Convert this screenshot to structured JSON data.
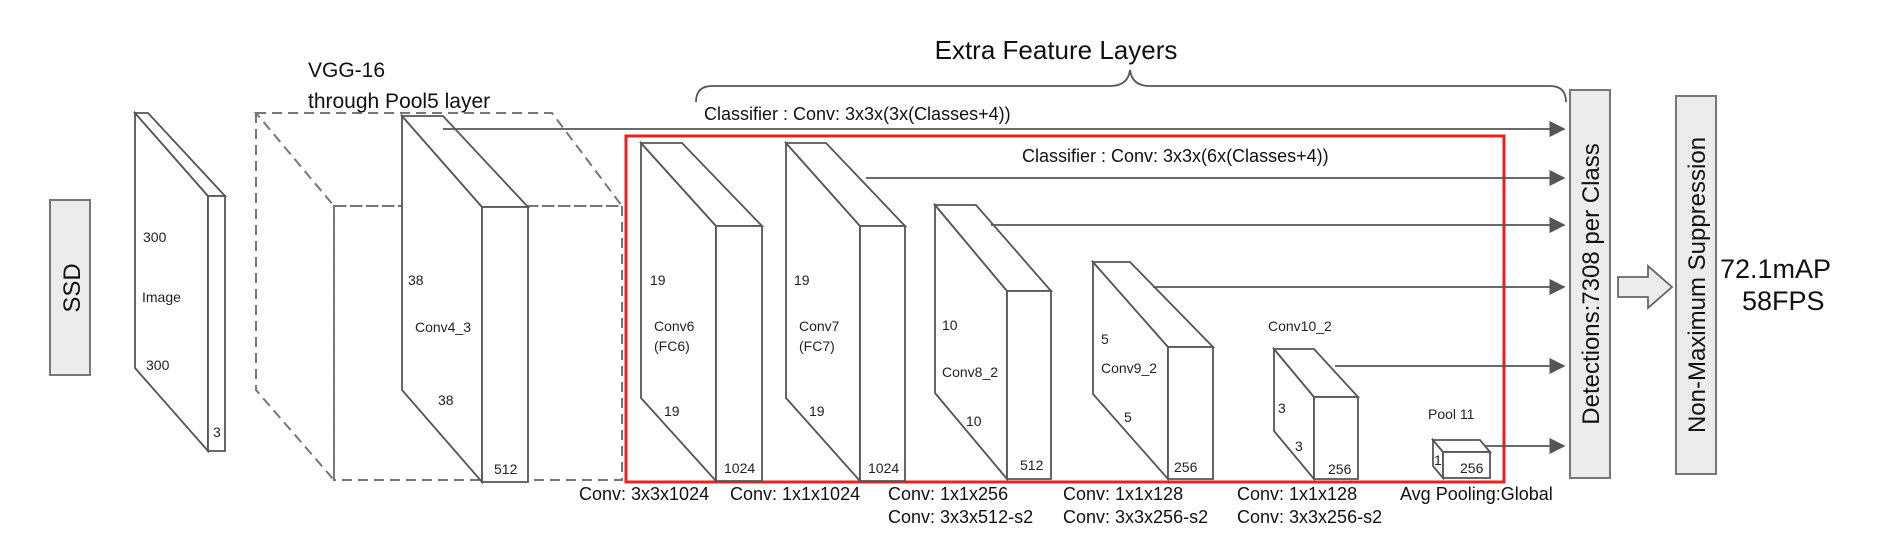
{
  "left_box": {
    "label": "SSD"
  },
  "image_block": {
    "label": "Image",
    "height": "300",
    "width": "300",
    "depth": "3"
  },
  "vgg": {
    "line1": "VGG-16",
    "line2": "through Pool5 layer"
  },
  "conv4_3": {
    "label": "Conv4_3",
    "height": "38",
    "width": "38",
    "depth": "512"
  },
  "extra_header": "Extra Feature Layers",
  "classifier_top": "Classifier : Conv: 3x3x(3x(Classes+4))",
  "classifier_inner": "Classifier : Conv: 3x3x(6x(Classes+4))",
  "layers": [
    {
      "name1": "Conv6",
      "name2": "(FC6)",
      "h": "19",
      "w": "19",
      "d": "1024"
    },
    {
      "name1": "Conv7",
      "name2": "(FC7)",
      "h": "19",
      "w": "19",
      "d": "1024"
    },
    {
      "name1": "Conv8_2",
      "h": "10",
      "w": "10",
      "d": "512"
    },
    {
      "name1": "Conv9_2",
      "h": "5",
      "w": "5",
      "d": "256"
    },
    {
      "name1": "Conv10_2",
      "h": "3",
      "w": "3",
      "d": "256"
    },
    {
      "name1": "Pool 11",
      "h": "1",
      "d": "256"
    }
  ],
  "bottom_labels": {
    "conv6": "Conv: 3x3x1024",
    "conv7": "Conv: 1x1x1024",
    "conv8_a": "Conv: 1x1x256",
    "conv8_b": "Conv:  3x3x512-s2",
    "conv9_a": "Conv: 1x1x128",
    "conv9_b": "Conv: 3x3x256-s2",
    "conv10_a": "Conv: 1x1x128",
    "conv10_b": "Conv: 3x3x256-s2",
    "pool": "Avg Pooling:Global"
  },
  "detections": "Detections:7308  per Class",
  "nms": "Non-Maximum Suppression",
  "result": {
    "map": "72.1mAP",
    "fps": "58FPS"
  },
  "colors": {
    "stroke": "#555555",
    "box_fill": "#ececec",
    "red": "#e8231f",
    "arrow": "#555555"
  }
}
